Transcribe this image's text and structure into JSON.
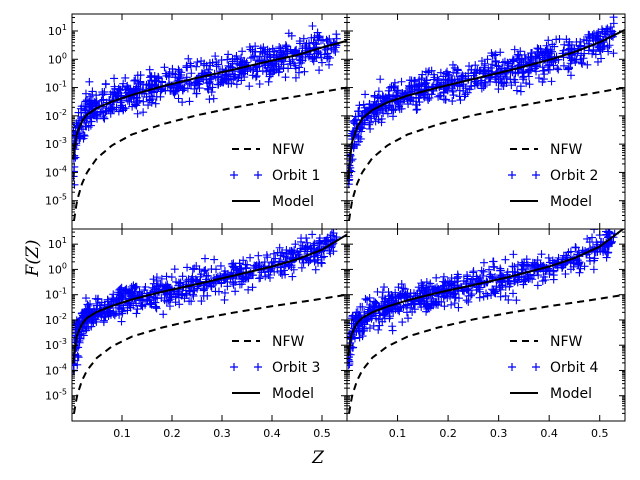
{
  "chart_data": {
    "type": "scatter",
    "layout": "2x2 grid, shared x and y axes",
    "xlabel": "Z",
    "ylabel": "F(Z)",
    "xlim": [
      0.0,
      0.55
    ],
    "ylim_log10": [
      -6,
      1.6
    ],
    "yscale": "log",
    "x_ticks": [
      0.1,
      0.2,
      0.3,
      0.4,
      0.5
    ],
    "x_tick_labels": [
      "0.1",
      "0.2",
      "0.3",
      "0.4",
      "0.5"
    ],
    "y_ticks_log10": [
      -5,
      -4,
      -3,
      -2,
      -1,
      0,
      1
    ],
    "y_tick_labels": [
      {
        "base": "10",
        "exp": "-5"
      },
      {
        "base": "10",
        "exp": "-4"
      },
      {
        "base": "10",
        "exp": "-3"
      },
      {
        "base": "10",
        "exp": "-2"
      },
      {
        "base": "10",
        "exp": "-1"
      },
      {
        "base": "10",
        "exp": "0"
      },
      {
        "base": "10",
        "exp": "1"
      }
    ],
    "legend_location": "lower right",
    "colors": {
      "nfw": "#000000",
      "orbit": "#0000ff",
      "model": "#000000"
    },
    "panels": [
      {
        "legend": [
          "NFW",
          "Orbit 1",
          "Model"
        ],
        "nfw": {
          "z": [
            0.004,
            0.01,
            0.02,
            0.03,
            0.05,
            0.08,
            0.12,
            0.18,
            0.25,
            0.32,
            0.4,
            0.48,
            0.55
          ],
          "f": [
            2e-06,
            1e-05,
            4e-05,
            0.0001,
            0.00032,
            0.0009,
            0.0022,
            0.005,
            0.0105,
            0.019,
            0.035,
            0.06,
            0.1
          ]
        },
        "model": {
          "z": [
            0.003,
            0.006,
            0.01,
            0.02,
            0.03,
            0.05,
            0.08,
            0.12,
            0.18,
            0.25,
            0.32,
            0.4,
            0.45,
            0.5,
            0.55
          ],
          "f": [
            0.0003,
            0.001,
            0.0024,
            0.0065,
            0.011,
            0.019,
            0.032,
            0.055,
            0.11,
            0.22,
            0.42,
            0.9,
            1.4,
            2.6,
            4.5
          ]
        },
        "orbit": {
          "z_range": [
            0.003,
            0.53
          ],
          "scatter_dex": 0.3
        }
      },
      {
        "legend": [
          "NFW",
          "Orbit 2",
          "Model"
        ],
        "nfw": {
          "z": [
            0.004,
            0.01,
            0.02,
            0.03,
            0.05,
            0.08,
            0.12,
            0.18,
            0.25,
            0.32,
            0.4,
            0.48,
            0.55
          ],
          "f": [
            2e-06,
            1e-05,
            4e-05,
            0.0001,
            0.00032,
            0.0009,
            0.0022,
            0.005,
            0.0105,
            0.019,
            0.035,
            0.06,
            0.1
          ]
        },
        "model": {
          "z": [
            0.003,
            0.006,
            0.01,
            0.02,
            0.03,
            0.05,
            0.08,
            0.12,
            0.18,
            0.25,
            0.32,
            0.4,
            0.45,
            0.5,
            0.55
          ],
          "f": [
            6e-05,
            0.0003,
            0.0012,
            0.004,
            0.008,
            0.016,
            0.03,
            0.052,
            0.1,
            0.2,
            0.4,
            0.95,
            1.8,
            4.0,
            11.0
          ]
        },
        "orbit": {
          "z_range": [
            0.003,
            0.53
          ],
          "scatter_dex": 0.3
        }
      },
      {
        "legend": [
          "NFW",
          "Orbit 3",
          "Model"
        ],
        "nfw": {
          "z": [
            0.004,
            0.01,
            0.02,
            0.03,
            0.05,
            0.08,
            0.12,
            0.18,
            0.25,
            0.32,
            0.4,
            0.48,
            0.55
          ],
          "f": [
            2e-06,
            1e-05,
            4e-05,
            0.0001,
            0.00032,
            0.0009,
            0.0022,
            0.005,
            0.0105,
            0.019,
            0.035,
            0.06,
            0.1
          ]
        },
        "model": {
          "z": [
            0.003,
            0.006,
            0.01,
            0.02,
            0.03,
            0.05,
            0.08,
            0.12,
            0.18,
            0.25,
            0.32,
            0.4,
            0.45,
            0.5,
            0.55
          ],
          "f": [
            0.0002,
            0.0009,
            0.0025,
            0.007,
            0.012,
            0.021,
            0.036,
            0.065,
            0.13,
            0.26,
            0.55,
            1.3,
            2.5,
            6.0,
            24.0
          ]
        },
        "orbit": {
          "z_range": [
            0.003,
            0.53
          ],
          "scatter_dex": 0.3
        }
      },
      {
        "legend": [
          "NFW",
          "Orbit 4",
          "Model"
        ],
        "nfw": {
          "z": [
            0.004,
            0.01,
            0.02,
            0.03,
            0.05,
            0.08,
            0.12,
            0.18,
            0.25,
            0.32,
            0.4,
            0.48,
            0.55
          ],
          "f": [
            2e-06,
            1e-05,
            4e-05,
            0.0001,
            0.00032,
            0.0009,
            0.0022,
            0.005,
            0.0105,
            0.019,
            0.035,
            0.06,
            0.1
          ]
        },
        "model": {
          "z": [
            0.003,
            0.006,
            0.01,
            0.02,
            0.03,
            0.05,
            0.08,
            0.12,
            0.18,
            0.25,
            0.32,
            0.4,
            0.45,
            0.5,
            0.55
          ],
          "f": [
            0.0004,
            0.0015,
            0.003,
            0.0075,
            0.012,
            0.02,
            0.034,
            0.06,
            0.12,
            0.24,
            0.5,
            1.3,
            2.8,
            8.0,
            45.0
          ]
        },
        "orbit": {
          "z_range": [
            0.003,
            0.53
          ],
          "scatter_dex": 0.3
        }
      }
    ]
  }
}
